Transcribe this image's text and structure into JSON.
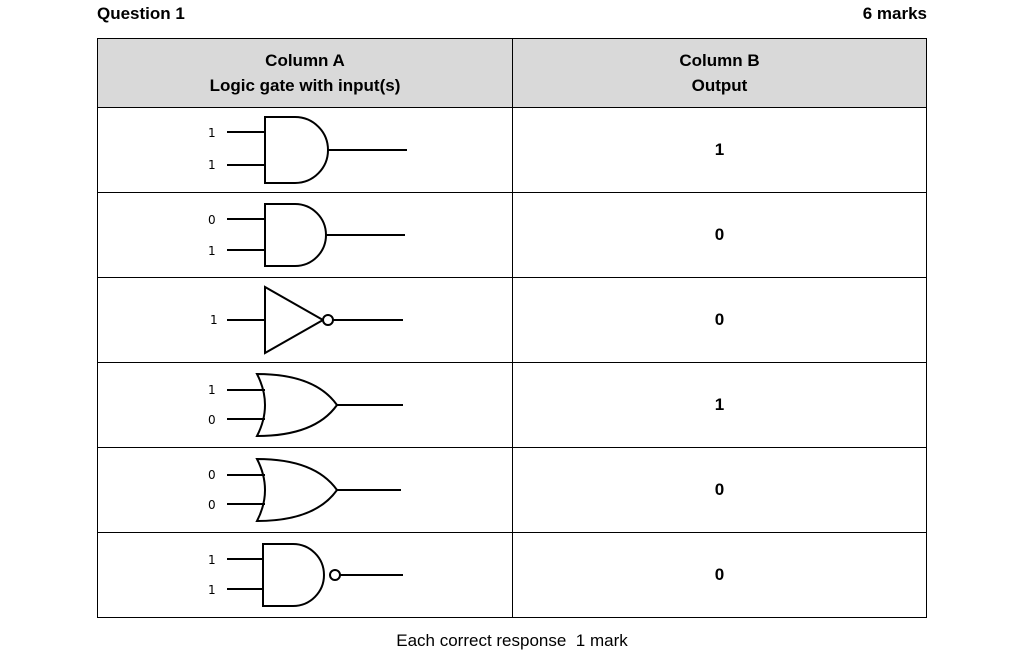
{
  "question": {
    "title": "Question 1",
    "marks": "6 marks"
  },
  "table": {
    "header_a_line1": "Column A",
    "header_a_line2": "Logic gate with input(s)",
    "header_b_line1": "Column B",
    "header_b_line2": "Output",
    "rows": [
      {
        "gate": "AND",
        "gate_icon": "and-gate-icon",
        "inputs": [
          "1",
          "1"
        ],
        "output": "1"
      },
      {
        "gate": "AND",
        "gate_icon": "and-gate-icon",
        "inputs": [
          "0",
          "1"
        ],
        "output": "0"
      },
      {
        "gate": "NOT",
        "gate_icon": "not-gate-icon",
        "inputs": [
          "1"
        ],
        "output": "0"
      },
      {
        "gate": "OR",
        "gate_icon": "or-gate-icon",
        "inputs": [
          "1",
          "0"
        ],
        "output": "1"
      },
      {
        "gate": "OR",
        "gate_icon": "or-gate-icon",
        "inputs": [
          "0",
          "0"
        ],
        "output": "0"
      },
      {
        "gate": "NAND",
        "gate_icon": "nand-gate-icon",
        "inputs": [
          "1",
          "1"
        ],
        "output": "0"
      }
    ]
  },
  "footer": "Each correct response  1 mark"
}
